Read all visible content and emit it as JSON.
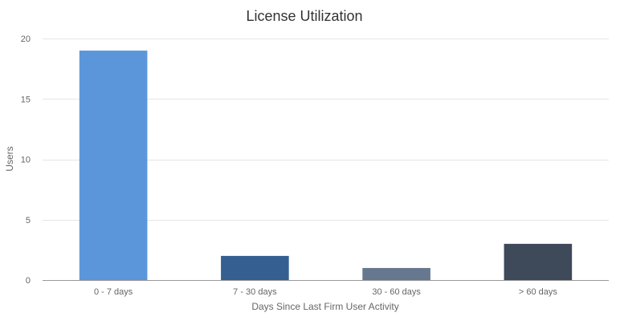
{
  "chart_data": {
    "type": "bar",
    "title": "License Utilization",
    "xlabel": "Days Since Last Firm User Activity",
    "ylabel": "Users",
    "categories": [
      "0 - 7 days",
      "7 - 30 days",
      "30 - 60 days",
      "> 60 days"
    ],
    "values": [
      19,
      2,
      1,
      3
    ],
    "bar_colors": [
      "#5b96db",
      "#365f91",
      "#66788f",
      "#3e4a5a"
    ],
    "ylim": [
      0,
      20
    ],
    "yticks": [
      "0",
      "5",
      "10",
      "15",
      "20"
    ],
    "grid": true,
    "legend": "none"
  }
}
